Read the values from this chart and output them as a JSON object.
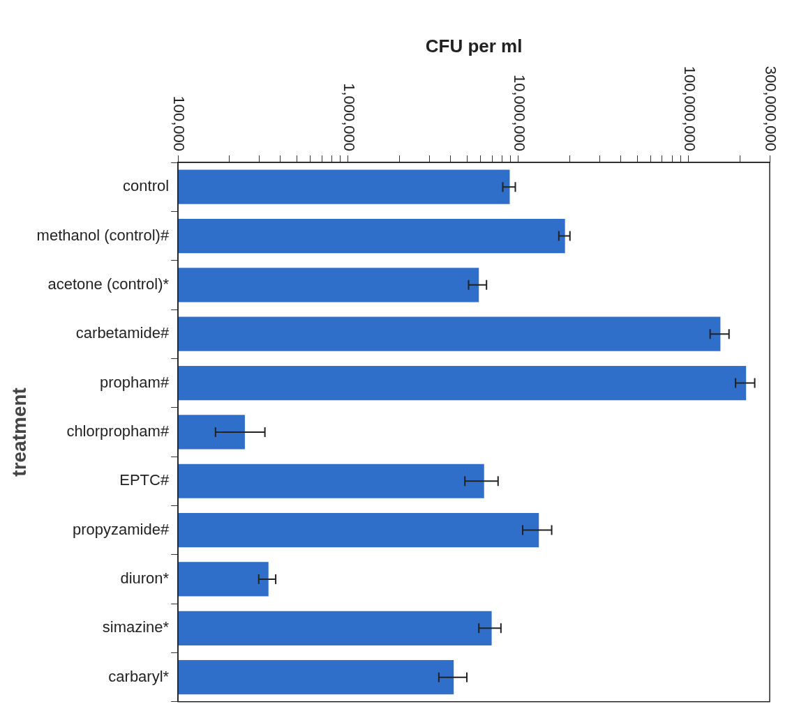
{
  "chart_data": {
    "type": "bar",
    "orientation": "horizontal",
    "xlabel": "CFU per ml",
    "ylabel": "treatment",
    "categories": [
      "control",
      "methanol (control)#",
      "acetone (control)*",
      "carbetamide#",
      "propham#",
      "chlorpropham#",
      "EPTC#",
      "propyzamide#",
      "diuron*",
      "simazine*",
      "carbaryl*"
    ],
    "series": [
      {
        "color": "#2f6fc9",
        "values": [
          8900000,
          18800000,
          5860000,
          154000000,
          218000000,
          247000,
          6290000,
          13200000,
          340000,
          6970000,
          4170000
        ],
        "errors": [
          [
            8100000,
            9600000
          ],
          [
            17300000,
            20100000
          ],
          [
            5100000,
            6500000
          ],
          [
            134000000,
            173000000
          ],
          [
            189000000,
            245000000
          ],
          [
            166000,
            324000
          ],
          [
            4850000,
            7600000
          ],
          [
            10600000,
            15700000
          ],
          [
            298000,
            375000
          ],
          [
            5860000,
            7900000
          ],
          [
            3410000,
            4980000
          ]
        ]
      }
    ],
    "log": "x",
    "xlim": [
      100000,
      300000000
    ],
    "xticks": [
      {
        "value": 100000,
        "label": "100,000"
      },
      {
        "value": 200000,
        "label": null
      },
      {
        "value": 300000,
        "label": null
      },
      {
        "value": 400000,
        "label": null
      },
      {
        "value": 500000,
        "label": null
      },
      {
        "value": 600000,
        "label": null
      },
      {
        "value": 700000,
        "label": null
      },
      {
        "value": 800000,
        "label": null
      },
      {
        "value": 900000,
        "label": null
      },
      {
        "value": 1000000,
        "label": "1,000,000"
      },
      {
        "value": 2000000,
        "label": null
      },
      {
        "value": 3000000,
        "label": null
      },
      {
        "value": 4000000,
        "label": null
      },
      {
        "value": 5000000,
        "label": null
      },
      {
        "value": 6000000,
        "label": null
      },
      {
        "value": 7000000,
        "label": null
      },
      {
        "value": 8000000,
        "label": null
      },
      {
        "value": 9000000,
        "label": null
      },
      {
        "value": 10000000,
        "label": "10,000,000"
      },
      {
        "value": 20000000,
        "label": null
      },
      {
        "value": 30000000,
        "label": null
      },
      {
        "value": 40000000,
        "label": null
      },
      {
        "value": 50000000,
        "label": null
      },
      {
        "value": 60000000,
        "label": null
      },
      {
        "value": 70000000,
        "label": null
      },
      {
        "value": 80000000,
        "label": null
      },
      {
        "value": 90000000,
        "label": null
      },
      {
        "value": 100000000,
        "label": "100,000,000"
      },
      {
        "value": 200000000,
        "label": null
      },
      {
        "value": 300000000,
        "label": "300,000,000"
      }
    ],
    "grid": false,
    "legend": false
  }
}
